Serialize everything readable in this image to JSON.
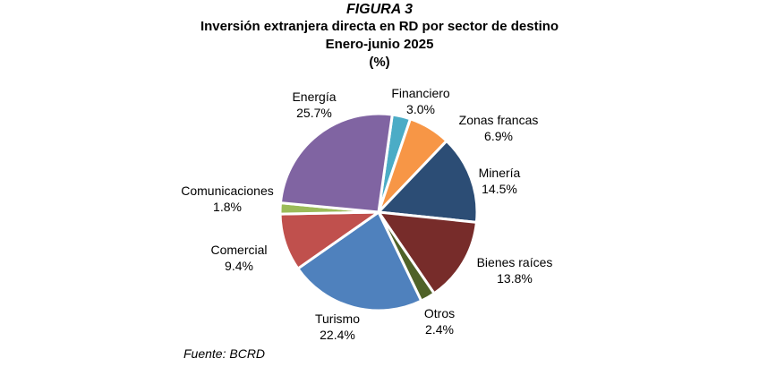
{
  "figure_label": "FIGURA 3",
  "title_lines": [
    "Inversión extranjera directa en RD por sector de destino",
    "Enero-junio 2025",
    "(%)"
  ],
  "source": "Fuente: BCRD",
  "chart_data": {
    "type": "pie",
    "title": "Inversión extranjera directa en RD por sector de destino",
    "subtitle": "Enero-junio 2025",
    "unit": "(%)",
    "categories": [
      "Financiero",
      "Zonas francas",
      "Minería",
      "Bienes raíces",
      "Otros",
      "Turismo",
      "Comercial",
      "Comunicaciones",
      "Energía"
    ],
    "values": [
      3.0,
      6.9,
      14.5,
      13.8,
      2.4,
      22.4,
      9.4,
      1.8,
      25.7
    ],
    "value_labels": [
      "3.0%",
      "6.9%",
      "14.5%",
      "13.8%",
      "2.4%",
      "22.4%",
      "9.4%",
      "1.8%",
      "25.7%"
    ],
    "colors": [
      "#4bacc6",
      "#f79646",
      "#2c4d75",
      "#772c2a",
      "#4f6228",
      "#4f81bd",
      "#c0504d",
      "#9bbb59",
      "#8064a2"
    ],
    "legend": "none",
    "labels": "outside"
  }
}
